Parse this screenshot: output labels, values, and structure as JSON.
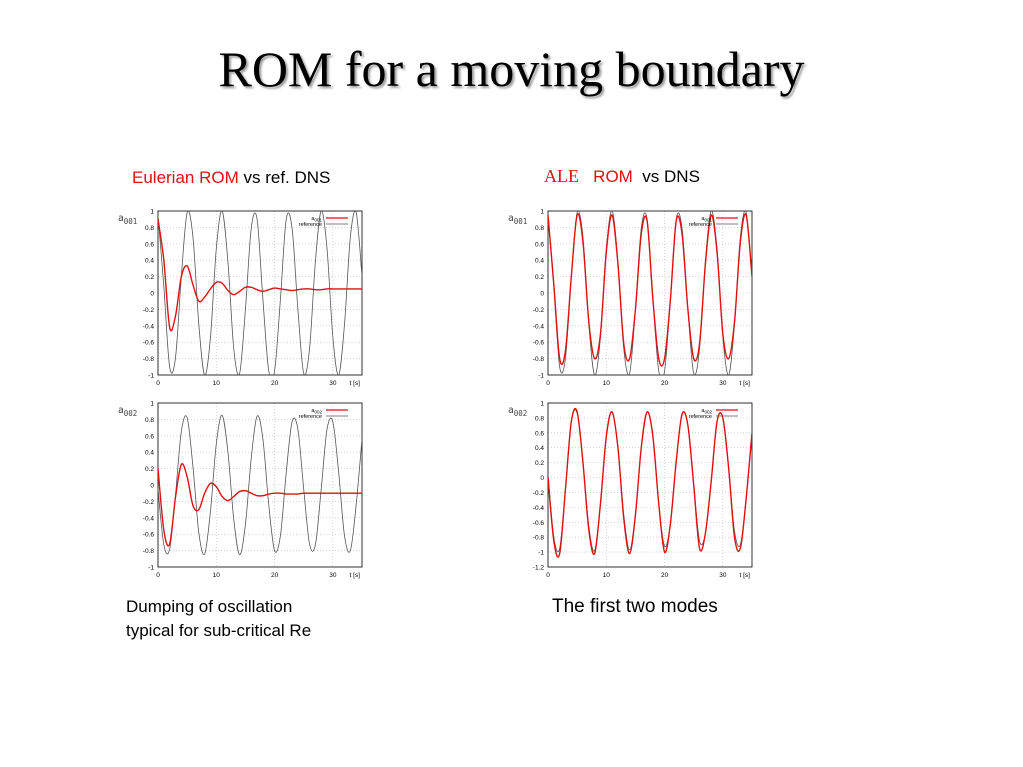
{
  "slide": {
    "title": "ROM for a moving boundary"
  },
  "left_heading": {
    "highlight": "Eulerian ROM",
    "rest": "vs ref. DNS"
  },
  "right_heading": {
    "part1": "ALE",
    "part2": "ROM",
    "part3": "vs  DNS"
  },
  "left_caption": {
    "line1": "Dumping of oscillation",
    "line2": "typical for sub-critical Re"
  },
  "right_caption": "The first two modes",
  "colors": {
    "rom": "#e01010",
    "reference": "#555555",
    "grid": "#bbbbbb",
    "frame": "#000000"
  },
  "chart_data": [
    {
      "type": "line",
      "panel": "top-left",
      "ylabel_main": "a",
      "ylabel_sub": "001",
      "xlabel": "t [s]",
      "xlim": [
        0,
        35
      ],
      "ylim": [
        -1,
        1
      ],
      "xticks": [
        0,
        10,
        20,
        30
      ],
      "yticks": [
        1,
        0.8,
        0.6,
        0.4,
        0.2,
        0,
        -0.2,
        -0.4,
        -0.6,
        -0.8,
        -1
      ],
      "legend": {
        "placement": "top-right",
        "entries": [
          {
            "main": "a",
            "sub": "001"
          },
          {
            "main": "reference",
            "sub": ""
          }
        ]
      },
      "grid": true,
      "series": [
        {
          "kind": "reference",
          "x": [
            0,
            1,
            2,
            3,
            4,
            5,
            6,
            7,
            8,
            9,
            10,
            11,
            12,
            13,
            14,
            15,
            16,
            17,
            18,
            19,
            20,
            21,
            22,
            23,
            24,
            25,
            26,
            27,
            28,
            29,
            30,
            31,
            32,
            33,
            34,
            35
          ],
          "y": [
            0.95,
            0.08,
            -0.9,
            -0.79,
            0.2,
            0.98,
            0.68,
            -0.38,
            -1.0,
            -0.54,
            0.54,
            1.0,
            0.38,
            -0.68,
            -0.98,
            -0.2,
            0.79,
            0.9,
            -0.08,
            -0.95,
            -0.95,
            -0.08,
            0.9,
            0.79,
            -0.2,
            -0.98,
            -0.68,
            0.38,
            1.0,
            0.54,
            -0.54,
            -1.0,
            -0.38,
            0.68,
            0.98,
            0.2
          ]
        },
        {
          "kind": "rom",
          "x": [
            0,
            1,
            2,
            3,
            4,
            5,
            6,
            7,
            8,
            9,
            10,
            11,
            12,
            13,
            14,
            15,
            16,
            17,
            18,
            19,
            20,
            21,
            22,
            23,
            24,
            25,
            26,
            27,
            28,
            29,
            30,
            31,
            32,
            33,
            34,
            35
          ],
          "y": [
            0.9,
            0.4,
            -0.42,
            -0.28,
            0.2,
            0.33,
            0.1,
            -0.1,
            -0.05,
            0.05,
            0.13,
            0.12,
            0.03,
            -0.02,
            0.02,
            0.07,
            0.07,
            0.04,
            0.02,
            0.04,
            0.06,
            0.05,
            0.04,
            0.03,
            0.04,
            0.05,
            0.05,
            0.04,
            0.04,
            0.05,
            0.05,
            0.05,
            0.05,
            0.05,
            0.05,
            0.05
          ]
        }
      ]
    },
    {
      "type": "line",
      "panel": "bottom-left",
      "ylabel_main": "a",
      "ylabel_sub": "002",
      "xlabel": "t [s]",
      "xlim": [
        0,
        35
      ],
      "ylim": [
        -1,
        1
      ],
      "xticks": [
        0,
        10,
        20,
        30
      ],
      "yticks": [
        1,
        0.8,
        0.6,
        0.4,
        0.2,
        0,
        -0.2,
        -0.4,
        -0.6,
        -0.8,
        -1
      ],
      "legend": {
        "placement": "top-right",
        "entries": [
          {
            "main": "a",
            "sub": "002"
          },
          {
            "main": "reference",
            "sub": ""
          }
        ]
      },
      "grid": true,
      "series": [
        {
          "kind": "reference",
          "x": [
            0,
            1,
            2,
            3,
            4,
            5,
            6,
            7,
            8,
            9,
            10,
            11,
            12,
            13,
            14,
            15,
            16,
            17,
            18,
            19,
            20,
            21,
            22,
            23,
            24,
            25,
            26,
            27,
            28,
            29,
            30,
            31,
            32,
            33,
            34,
            35
          ],
          "y": [
            -0.05,
            -0.73,
            -0.78,
            -0.12,
            0.65,
            0.82,
            0.22,
            -0.58,
            -0.84,
            -0.32,
            0.5,
            0.85,
            0.4,
            -0.42,
            -0.85,
            -0.48,
            0.33,
            0.84,
            0.56,
            -0.24,
            -0.8,
            -0.62,
            0.15,
            0.77,
            0.68,
            -0.05,
            -0.72,
            -0.73,
            -0.05,
            0.68,
            0.77,
            0.15,
            -0.62,
            -0.8,
            -0.24,
            0.56
          ]
        },
        {
          "kind": "rom",
          "x": [
            0,
            1,
            2,
            3,
            4,
            5,
            6,
            7,
            8,
            9,
            10,
            11,
            12,
            13,
            14,
            15,
            16,
            17,
            18,
            19,
            20,
            21,
            22,
            23,
            24,
            25,
            26,
            27,
            28,
            29,
            30,
            31,
            32,
            33,
            34,
            35
          ],
          "y": [
            0.2,
            -0.55,
            -0.72,
            -0.15,
            0.25,
            0.1,
            -0.25,
            -0.3,
            -0.1,
            0.02,
            -0.02,
            -0.14,
            -0.19,
            -0.14,
            -0.08,
            -0.07,
            -0.1,
            -0.13,
            -0.13,
            -0.11,
            -0.1,
            -0.1,
            -0.11,
            -0.11,
            -0.11,
            -0.1,
            -0.1,
            -0.1,
            -0.1,
            -0.1,
            -0.1,
            -0.1,
            -0.1,
            -0.1,
            -0.1,
            -0.1
          ]
        }
      ]
    },
    {
      "type": "line",
      "panel": "top-right",
      "ylabel_main": "a",
      "ylabel_sub": "001",
      "xlabel": "t [s]",
      "xlim": [
        0,
        35
      ],
      "ylim": [
        -1,
        1
      ],
      "xticks": [
        0,
        10,
        20,
        30
      ],
      "yticks": [
        1,
        0.8,
        0.6,
        0.4,
        0.2,
        0,
        -0.2,
        -0.4,
        -0.6,
        -0.8,
        -1
      ],
      "legend": {
        "placement": "top-right",
        "entries": [
          {
            "main": "a",
            "sub": "001"
          },
          {
            "main": "reference",
            "sub": ""
          }
        ]
      },
      "grid": true,
      "series": [
        {
          "kind": "reference",
          "x": [
            0,
            1,
            2,
            3,
            4,
            5,
            6,
            7,
            8,
            9,
            10,
            11,
            12,
            13,
            14,
            15,
            16,
            17,
            18,
            19,
            20,
            21,
            22,
            23,
            24,
            25,
            26,
            27,
            28,
            29,
            30,
            31,
            32,
            33,
            34,
            35
          ],
          "y": [
            0.95,
            0.08,
            -0.9,
            -0.79,
            0.2,
            0.98,
            0.68,
            -0.38,
            -1.0,
            -0.54,
            0.54,
            1.0,
            0.38,
            -0.68,
            -0.98,
            -0.2,
            0.79,
            0.9,
            -0.08,
            -0.95,
            -0.95,
            -0.08,
            0.9,
            0.79,
            -0.2,
            -0.98,
            -0.68,
            0.38,
            1.0,
            0.54,
            -0.54,
            -1.0,
            -0.38,
            0.68,
            0.98,
            0.2
          ]
        },
        {
          "kind": "rom",
          "x": [
            0,
            1,
            2,
            3,
            4,
            5,
            6,
            7,
            8,
            9,
            10,
            11,
            12,
            13,
            14,
            15,
            16,
            17,
            18,
            19,
            20,
            21,
            22,
            23,
            24,
            25,
            26,
            27,
            28,
            29,
            30,
            31,
            32,
            33,
            34,
            35
          ],
          "y": [
            0.95,
            0.1,
            -0.8,
            -0.7,
            0.2,
            0.95,
            0.62,
            -0.35,
            -0.8,
            -0.5,
            0.5,
            0.95,
            0.35,
            -0.62,
            -0.8,
            -0.2,
            0.72,
            0.88,
            -0.08,
            -0.8,
            -0.8,
            -0.08,
            0.88,
            0.72,
            -0.2,
            -0.8,
            -0.62,
            0.35,
            0.95,
            0.5,
            -0.5,
            -0.8,
            -0.35,
            0.62,
            0.95,
            0.2
          ]
        }
      ]
    },
    {
      "type": "line",
      "panel": "bottom-right",
      "ylabel_main": "a",
      "ylabel_sub": "002",
      "xlabel": "t [s]",
      "xlim": [
        0,
        35
      ],
      "ylim": [
        -1.2,
        1
      ],
      "xticks": [
        0,
        10,
        20,
        30
      ],
      "yticks": [
        1,
        0.8,
        0.6,
        0.4,
        0.2,
        0,
        -0.2,
        -0.4,
        -0.6,
        -0.8,
        -1,
        -1.2
      ],
      "legend": {
        "placement": "top-right",
        "entries": [
          {
            "main": "a",
            "sub": "002"
          },
          {
            "main": "reference",
            "sub": ""
          }
        ]
      },
      "grid": true,
      "series": [
        {
          "kind": "reference",
          "x": [
            0,
            1,
            2,
            3,
            4,
            5,
            6,
            7,
            8,
            9,
            10,
            11,
            12,
            13,
            14,
            15,
            16,
            17,
            18,
            19,
            20,
            21,
            22,
            23,
            24,
            25,
            26,
            27,
            28,
            29,
            30,
            31,
            32,
            33,
            34,
            35
          ],
          "y": [
            0.05,
            -0.8,
            -0.95,
            -0.15,
            0.75,
            0.86,
            0.2,
            -0.65,
            -0.98,
            -0.35,
            0.55,
            0.88,
            0.4,
            -0.5,
            -0.97,
            -0.5,
            0.4,
            0.88,
            0.55,
            -0.35,
            -0.92,
            -0.62,
            0.22,
            0.85,
            0.7,
            -0.1,
            -0.85,
            -0.75,
            -0.05,
            0.75,
            0.8,
            0.12,
            -0.72,
            -0.9,
            -0.28,
            0.6
          ]
        },
        {
          "kind": "rom",
          "x": [
            0,
            1,
            2,
            3,
            4,
            5,
            6,
            7,
            8,
            9,
            10,
            11,
            12,
            13,
            14,
            15,
            16,
            17,
            18,
            19,
            20,
            21,
            22,
            23,
            24,
            25,
            26,
            27,
            28,
            29,
            30,
            31,
            32,
            33,
            34,
            35
          ],
          "y": [
            0.0,
            -0.85,
            -1.02,
            -0.15,
            0.75,
            0.88,
            0.2,
            -0.7,
            -1.02,
            -0.35,
            0.55,
            0.88,
            0.4,
            -0.55,
            -1.02,
            -0.5,
            0.4,
            0.88,
            0.55,
            -0.35,
            -1.0,
            -0.62,
            0.22,
            0.85,
            0.7,
            -0.1,
            -0.95,
            -0.75,
            -0.05,
            0.75,
            0.8,
            0.12,
            -0.8,
            -0.95,
            -0.28,
            0.6
          ]
        }
      ]
    }
  ]
}
